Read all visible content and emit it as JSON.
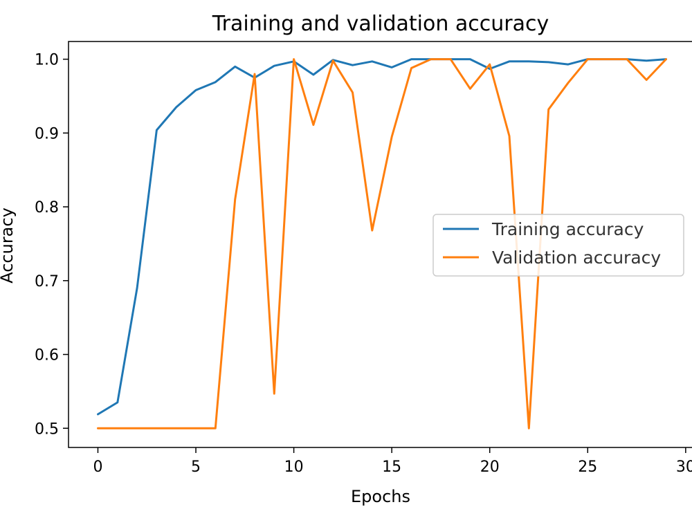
{
  "chart_data": {
    "type": "line",
    "title": "Training and validation accuracy",
    "xlabel": "Epochs",
    "ylabel": "Accuracy",
    "xlim": [
      -1.5,
      30.5
    ],
    "ylim": [
      0.474,
      1.024
    ],
    "xticks": [
      0,
      5,
      10,
      15,
      20,
      25,
      30
    ],
    "yticks": [
      0.5,
      0.6,
      0.7,
      0.8,
      0.9,
      1.0
    ],
    "ytick_labels": [
      "0.5",
      "0.6",
      "0.7",
      "0.8",
      "0.9",
      "1.0"
    ],
    "grid": false,
    "legend_position": "center-right",
    "x": [
      0,
      1,
      2,
      3,
      4,
      5,
      6,
      7,
      8,
      9,
      10,
      11,
      12,
      13,
      14,
      15,
      16,
      17,
      18,
      19,
      20,
      21,
      22,
      23,
      24,
      25,
      26,
      27,
      28,
      29
    ],
    "series": [
      {
        "name": "Training accuracy",
        "color": "#1f77b4",
        "values": [
          0.519,
          0.535,
          0.69,
          0.904,
          0.935,
          0.958,
          0.969,
          0.99,
          0.975,
          0.991,
          0.997,
          0.979,
          0.999,
          0.992,
          0.997,
          0.989,
          1.0,
          1.0,
          1.0,
          1.0,
          0.987,
          0.997,
          0.997,
          0.996,
          0.993,
          1.0,
          1.0,
          1.0,
          0.998,
          1.0
        ]
      },
      {
        "name": "Validation accuracy",
        "color": "#ff7f0e",
        "values": [
          0.5,
          0.5,
          0.5,
          0.5,
          0.5,
          0.5,
          0.5,
          0.81,
          0.98,
          0.547,
          1.0,
          0.911,
          0.998,
          0.955,
          0.768,
          0.895,
          0.988,
          1.0,
          1.0,
          0.96,
          0.993,
          0.896,
          0.5,
          0.932,
          0.968,
          1.0,
          1.0,
          1.0,
          0.972,
          1.0
        ]
      }
    ]
  }
}
